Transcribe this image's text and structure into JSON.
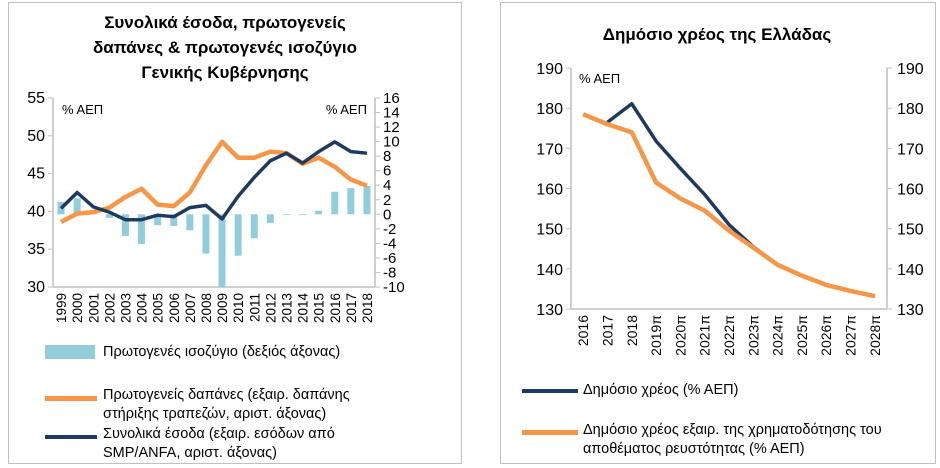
{
  "chart_data": [
    {
      "type": "bar+line",
      "title": [
        "Συνολικά έσοδα, πρωτογενείς",
        "δαπάνες & πρωτογενές ισοζύγιο",
        "Γενικής Κυβέρνησης"
      ],
      "left_axis": {
        "label": "% ΑΕΠ",
        "ylim": [
          30,
          55
        ],
        "ticks": [
          30,
          35,
          40,
          45,
          50,
          55
        ]
      },
      "right_axis": {
        "label": "% ΑΕΠ",
        "ylim": [
          -10,
          16
        ],
        "ticks": [
          -10,
          -8,
          -6,
          -4,
          -2,
          0,
          2,
          4,
          6,
          8,
          10,
          12,
          14,
          16
        ]
      },
      "categories": [
        "1999",
        "2000",
        "2001",
        "2002",
        "2003",
        "2004",
        "2005",
        "2006",
        "2007",
        "2008",
        "2009",
        "2010",
        "2011",
        "2012",
        "2013",
        "2014",
        "2015",
        "2016",
        "2017",
        "2018"
      ],
      "grid": false,
      "legend_placement": "bottom",
      "series": [
        {
          "name": "Πρωτογενές ισοζύγιο (δεξιός άξονας)",
          "type": "bar",
          "axis": "right",
          "color": "#92CDDC",
          "values": [
            1.7,
            2.2,
            0.5,
            -0.5,
            -3.0,
            -4.1,
            -1.5,
            -1.6,
            -2.2,
            -5.4,
            -10.1,
            -5.7,
            -3.3,
            -1.2,
            -0.1,
            0.0,
            0.5,
            3.1,
            3.6,
            3.9
          ]
        },
        {
          "name": "Πρωτογενείς δαπάνες (εξαιρ. δαπάνης στήριξης τραπεζών, αριστ. άξονας)",
          "type": "line",
          "axis": "left",
          "color": "#F79646",
          "legend_lines": [
            "Πρωτογενείς δαπάνες (εξαιρ. δαπάνης",
            "στήριξης τραπεζών, αριστ. άξονας)"
          ],
          "values": [
            38.6,
            39.7,
            39.9,
            40.5,
            41.9,
            43.0,
            40.9,
            40.7,
            42.5,
            46.1,
            49.2,
            47.1,
            47.1,
            47.9,
            47.7,
            46.3,
            47.1,
            45.9,
            44.2,
            43.4
          ]
        },
        {
          "name": "Συνολικά έσοδα (εξαιρ. εσόδων από SMP/ANFA, αριστ. άξονας)",
          "type": "line",
          "axis": "left",
          "color": "#1F3A5F",
          "legend_lines": [
            "Συνολικά έσοδα (εξαιρ. εσόδων από",
            "SMP/ANFA, αριστ. άξονας)"
          ],
          "values": [
            40.4,
            42.5,
            40.6,
            39.9,
            38.9,
            38.9,
            39.5,
            39.3,
            40.5,
            40.8,
            39.0,
            42.0,
            44.5,
            46.7,
            47.7,
            46.4,
            47.9,
            49.2,
            47.9,
            47.7
          ]
        }
      ]
    },
    {
      "type": "line",
      "title": "Δημόσιο χρέος της Ελλάδας",
      "ylabel": "% ΑΕΠ",
      "ylim": [
        130,
        190
      ],
      "ticks": [
        130,
        140,
        150,
        160,
        170,
        180,
        190
      ],
      "categories": [
        "2016",
        "2017",
        "2018",
        "2019π",
        "2020π",
        "2021π",
        "2022π",
        "2023π",
        "2024π",
        "2025π",
        "2026π",
        "2027π",
        "2028π"
      ],
      "grid": false,
      "legend_placement": "bottom",
      "series": [
        {
          "name": "Δημόσιο χρέος (% ΑΕΠ)",
          "color": "#1F3A5F",
          "legend_lines": [
            "Δημόσιο χρέος (% ΑΕΠ)"
          ],
          "values": [
            null,
            176.5,
            181.1,
            171.8,
            165.0,
            158.5,
            151.0,
            145.5,
            141.0,
            138.3,
            136.0,
            134.5,
            133.2
          ]
        },
        {
          "name": "Δημόσιο χρέος εξαιρ. της χρηματοδότησης του αποθέματος ρευστότητας (% ΑΕΠ)",
          "color": "#F79646",
          "legend_lines": [
            "Δημόσιο χρέος εξαιρ. της χρηματοδότησης του",
            "αποθέματος ρευστότητας (% ΑΕΠ)"
          ],
          "values": [
            178.5,
            176.0,
            174.0,
            161.5,
            157.5,
            154.5,
            149.5,
            145.3,
            141.0,
            138.3,
            136.0,
            134.5,
            133.2
          ]
        }
      ]
    }
  ]
}
